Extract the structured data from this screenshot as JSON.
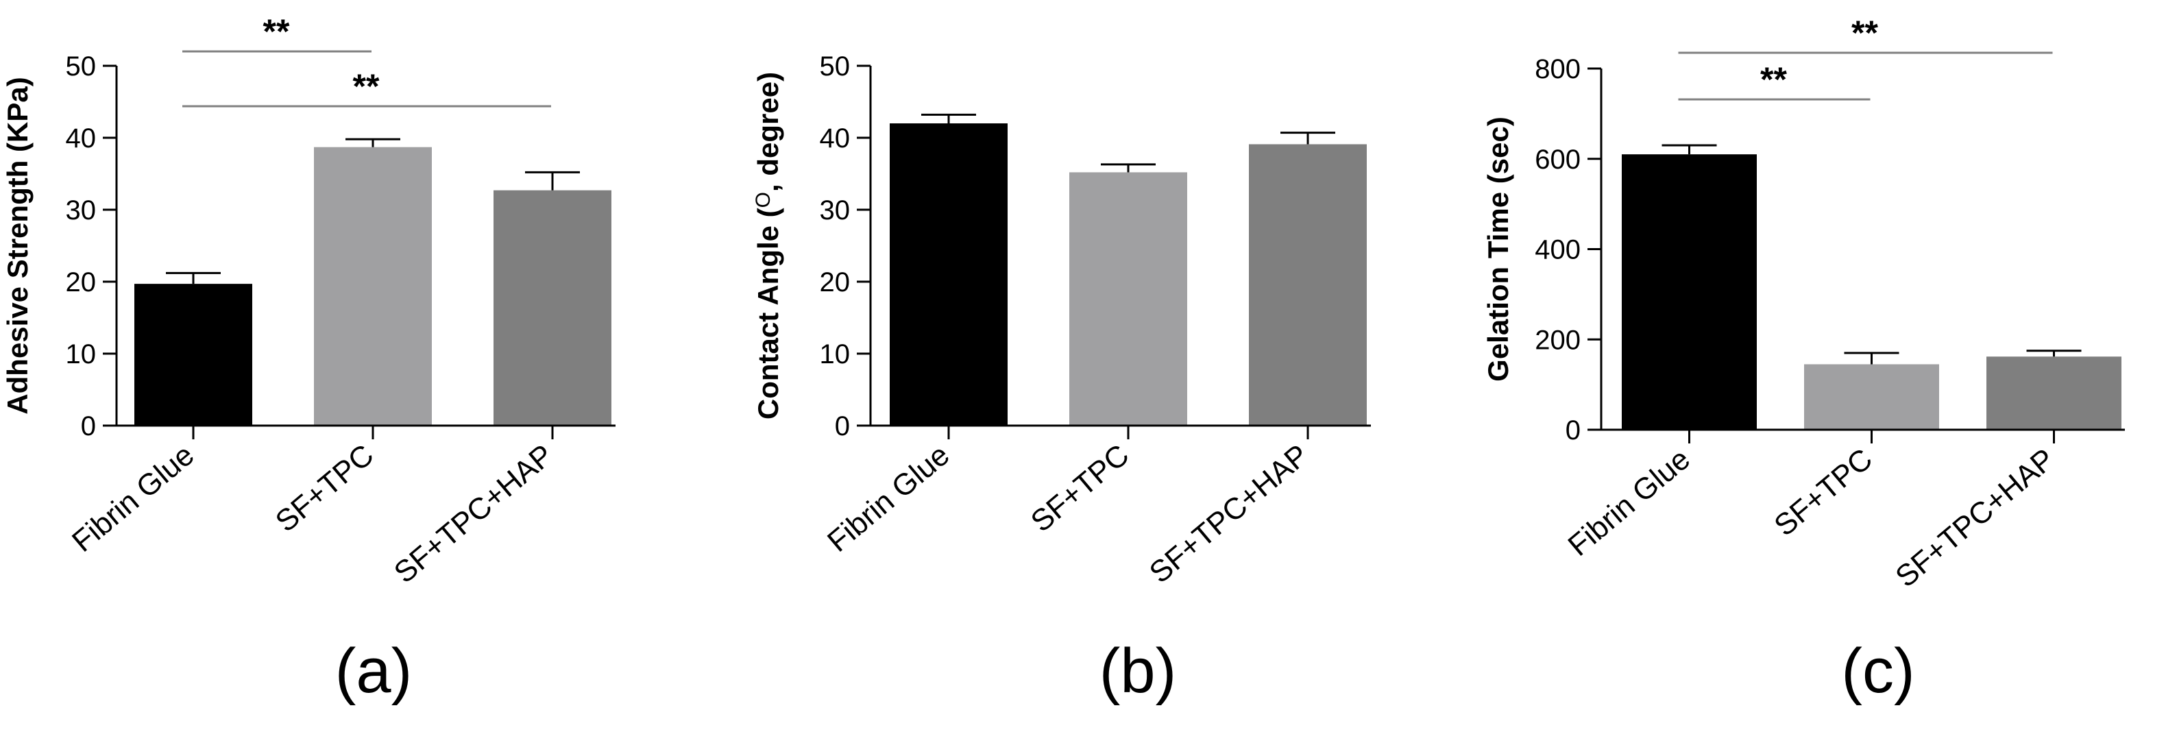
{
  "chart_data": [
    {
      "type": "bar",
      "panel_label": "(a)",
      "ylabel": "Adhesive Strength (KPa)",
      "categories": [
        "Fibrin Glue",
        "SF+TPC",
        "SF+TPC+HAP"
      ],
      "values": [
        19.7,
        38.7,
        32.7
      ],
      "errors": [
        1.5,
        1.1,
        2.5
      ],
      "colors": [
        "#000000",
        "#a0a0a2",
        "#7f7f7f"
      ],
      "ylim": [
        0,
        50
      ],
      "yticks": [
        0,
        10,
        20,
        30,
        40,
        50
      ],
      "annotations": [
        {
          "text": "**",
          "from": 0,
          "to": 1,
          "level": 1
        },
        {
          "text": "**",
          "from": 0,
          "to": 2,
          "level": 0
        }
      ]
    },
    {
      "type": "bar",
      "panel_label": "(b)",
      "ylabel_pre": "Contact Angle (",
      "ylabel_sup": "O",
      "ylabel_post": ", degree)",
      "categories": [
        "Fibrin Glue",
        "SF+TPC",
        "SF+TPC+HAP"
      ],
      "values": [
        42.0,
        35.2,
        39.1
      ],
      "errors": [
        1.2,
        1.1,
        1.6
      ],
      "colors": [
        "#000000",
        "#a0a0a2",
        "#7f7f7f"
      ],
      "ylim": [
        0,
        50
      ],
      "yticks": [
        0,
        10,
        20,
        30,
        40,
        50
      ],
      "annotations": []
    },
    {
      "type": "bar",
      "panel_label": "(c)",
      "ylabel": "Gelation Time (sec)",
      "categories": [
        "Fibrin Glue",
        "SF+TPC",
        "SF+TPC+HAP"
      ],
      "values": [
        610,
        145,
        162
      ],
      "errors": [
        20,
        25,
        13
      ],
      "colors": [
        "#000000",
        "#a0a0a2",
        "#7f7f7f"
      ],
      "ylim": [
        0,
        800
      ],
      "yticks": [
        0,
        200,
        400,
        600,
        800
      ],
      "annotations": [
        {
          "text": "**",
          "from": 0,
          "to": 1,
          "level": 0
        },
        {
          "text": "**",
          "from": 0,
          "to": 2,
          "level": 1
        }
      ]
    }
  ]
}
